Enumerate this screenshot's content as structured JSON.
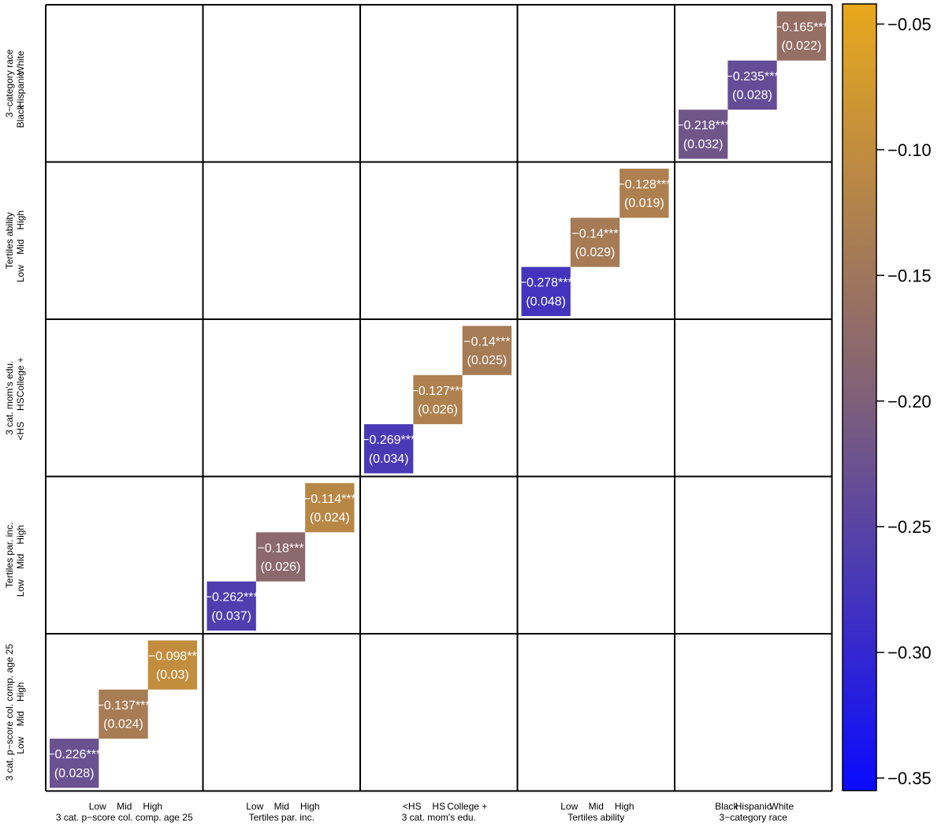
{
  "chart_data": {
    "type": "heatmap",
    "title": "",
    "groups": [
      {
        "name": "3 cat. p−score col. comp. age 25",
        "categories": [
          "Low",
          "Mid",
          "High"
        ]
      },
      {
        "name": "Tertiles par. inc.",
        "categories": [
          "Low",
          "Mid",
          "High"
        ]
      },
      {
        "name": "3 cat. mom's edu.",
        "categories": [
          "<HS",
          "HS",
          "College +"
        ]
      },
      {
        "name": "Tertiles ability",
        "categories": [
          "Low",
          "Mid",
          "High"
        ]
      },
      {
        "name": "3−category race",
        "categories": [
          "Black",
          "Hispanic",
          "White"
        ]
      }
    ],
    "cells": [
      {
        "group": 0,
        "category": 0,
        "label": "−0.226***",
        "value": -0.226,
        "se": "(0.028)"
      },
      {
        "group": 0,
        "category": 1,
        "label": "−0.137***",
        "value": -0.137,
        "se": "(0.024)"
      },
      {
        "group": 0,
        "category": 2,
        "label": "−0.098**",
        "value": -0.098,
        "se": "(0.03)"
      },
      {
        "group": 1,
        "category": 0,
        "label": "−0.262***",
        "value": -0.262,
        "se": "(0.037)"
      },
      {
        "group": 1,
        "category": 1,
        "label": "−0.18***",
        "value": -0.18,
        "se": "(0.026)"
      },
      {
        "group": 1,
        "category": 2,
        "label": "−0.114***",
        "value": -0.114,
        "se": "(0.024)"
      },
      {
        "group": 2,
        "category": 0,
        "label": "−0.269***",
        "value": -0.269,
        "se": "(0.034)"
      },
      {
        "group": 2,
        "category": 1,
        "label": "−0.127***",
        "value": -0.127,
        "se": "(0.026)"
      },
      {
        "group": 2,
        "category": 2,
        "label": "−0.14***",
        "value": -0.14,
        "se": "(0.025)"
      },
      {
        "group": 3,
        "category": 0,
        "label": "−0.278***",
        "value": -0.278,
        "se": "(0.048)"
      },
      {
        "group": 3,
        "category": 1,
        "label": "−0.14***",
        "value": -0.14,
        "se": "(0.029)"
      },
      {
        "group": 3,
        "category": 2,
        "label": "−0.128***",
        "value": -0.128,
        "se": "(0.019)"
      },
      {
        "group": 4,
        "category": 0,
        "label": "−0.218***",
        "value": -0.218,
        "se": "(0.032)"
      },
      {
        "group": 4,
        "category": 1,
        "label": "−0.235***",
        "value": -0.235,
        "se": "(0.028)"
      },
      {
        "group": 4,
        "category": 2,
        "label": "−0.165***",
        "value": -0.165,
        "se": "(0.022)"
      }
    ],
    "colorbar": {
      "range": [
        -0.355,
        -0.042
      ],
      "ticks": [
        -0.05,
        -0.1,
        -0.15,
        -0.2,
        -0.25,
        -0.3,
        -0.35
      ],
      "tick_labels": [
        "−0.05",
        "−0.10",
        "−0.15",
        "−0.20",
        "−0.25",
        "−0.30",
        "−0.35"
      ],
      "colors": {
        "low": "#0a0aff",
        "mid": "#7f6078",
        "high": "#e8a81c"
      }
    },
    "grid": true,
    "legend": "right"
  }
}
